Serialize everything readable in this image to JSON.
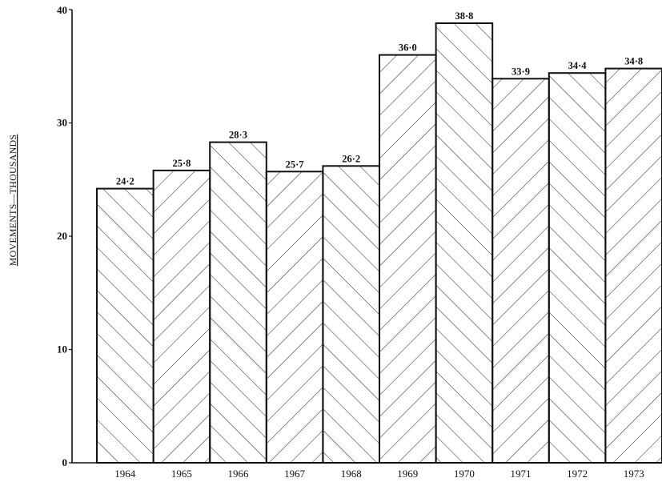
{
  "chart_data": {
    "type": "bar",
    "title": "",
    "xlabel": "",
    "ylabel": "MOVEMENTS—THOUSANDS",
    "categories": [
      "1964",
      "1965",
      "1966",
      "1967",
      "1968",
      "1969",
      "1970",
      "1971",
      "1972",
      "1973"
    ],
    "values": [
      24.2,
      25.8,
      28.3,
      25.7,
      26.2,
      36.0,
      38.8,
      33.9,
      34.4,
      34.8
    ],
    "value_labels": [
      "24·2",
      "25·8",
      "28·3",
      "25·7",
      "26·2",
      "36·0",
      "38·8",
      "33·9",
      "34·4",
      "34·8"
    ],
    "ylim": [
      0,
      40
    ],
    "yticks": [
      0,
      10,
      20,
      30,
      40
    ],
    "ytick_labels": [
      "0",
      "10",
      "20",
      "30",
      "40"
    ],
    "grid": false,
    "legend": "none",
    "bar_fill": "hatched (alternating diagonal direction)",
    "colors": {
      "ink": "#111111",
      "background": "#ffffff"
    }
  }
}
